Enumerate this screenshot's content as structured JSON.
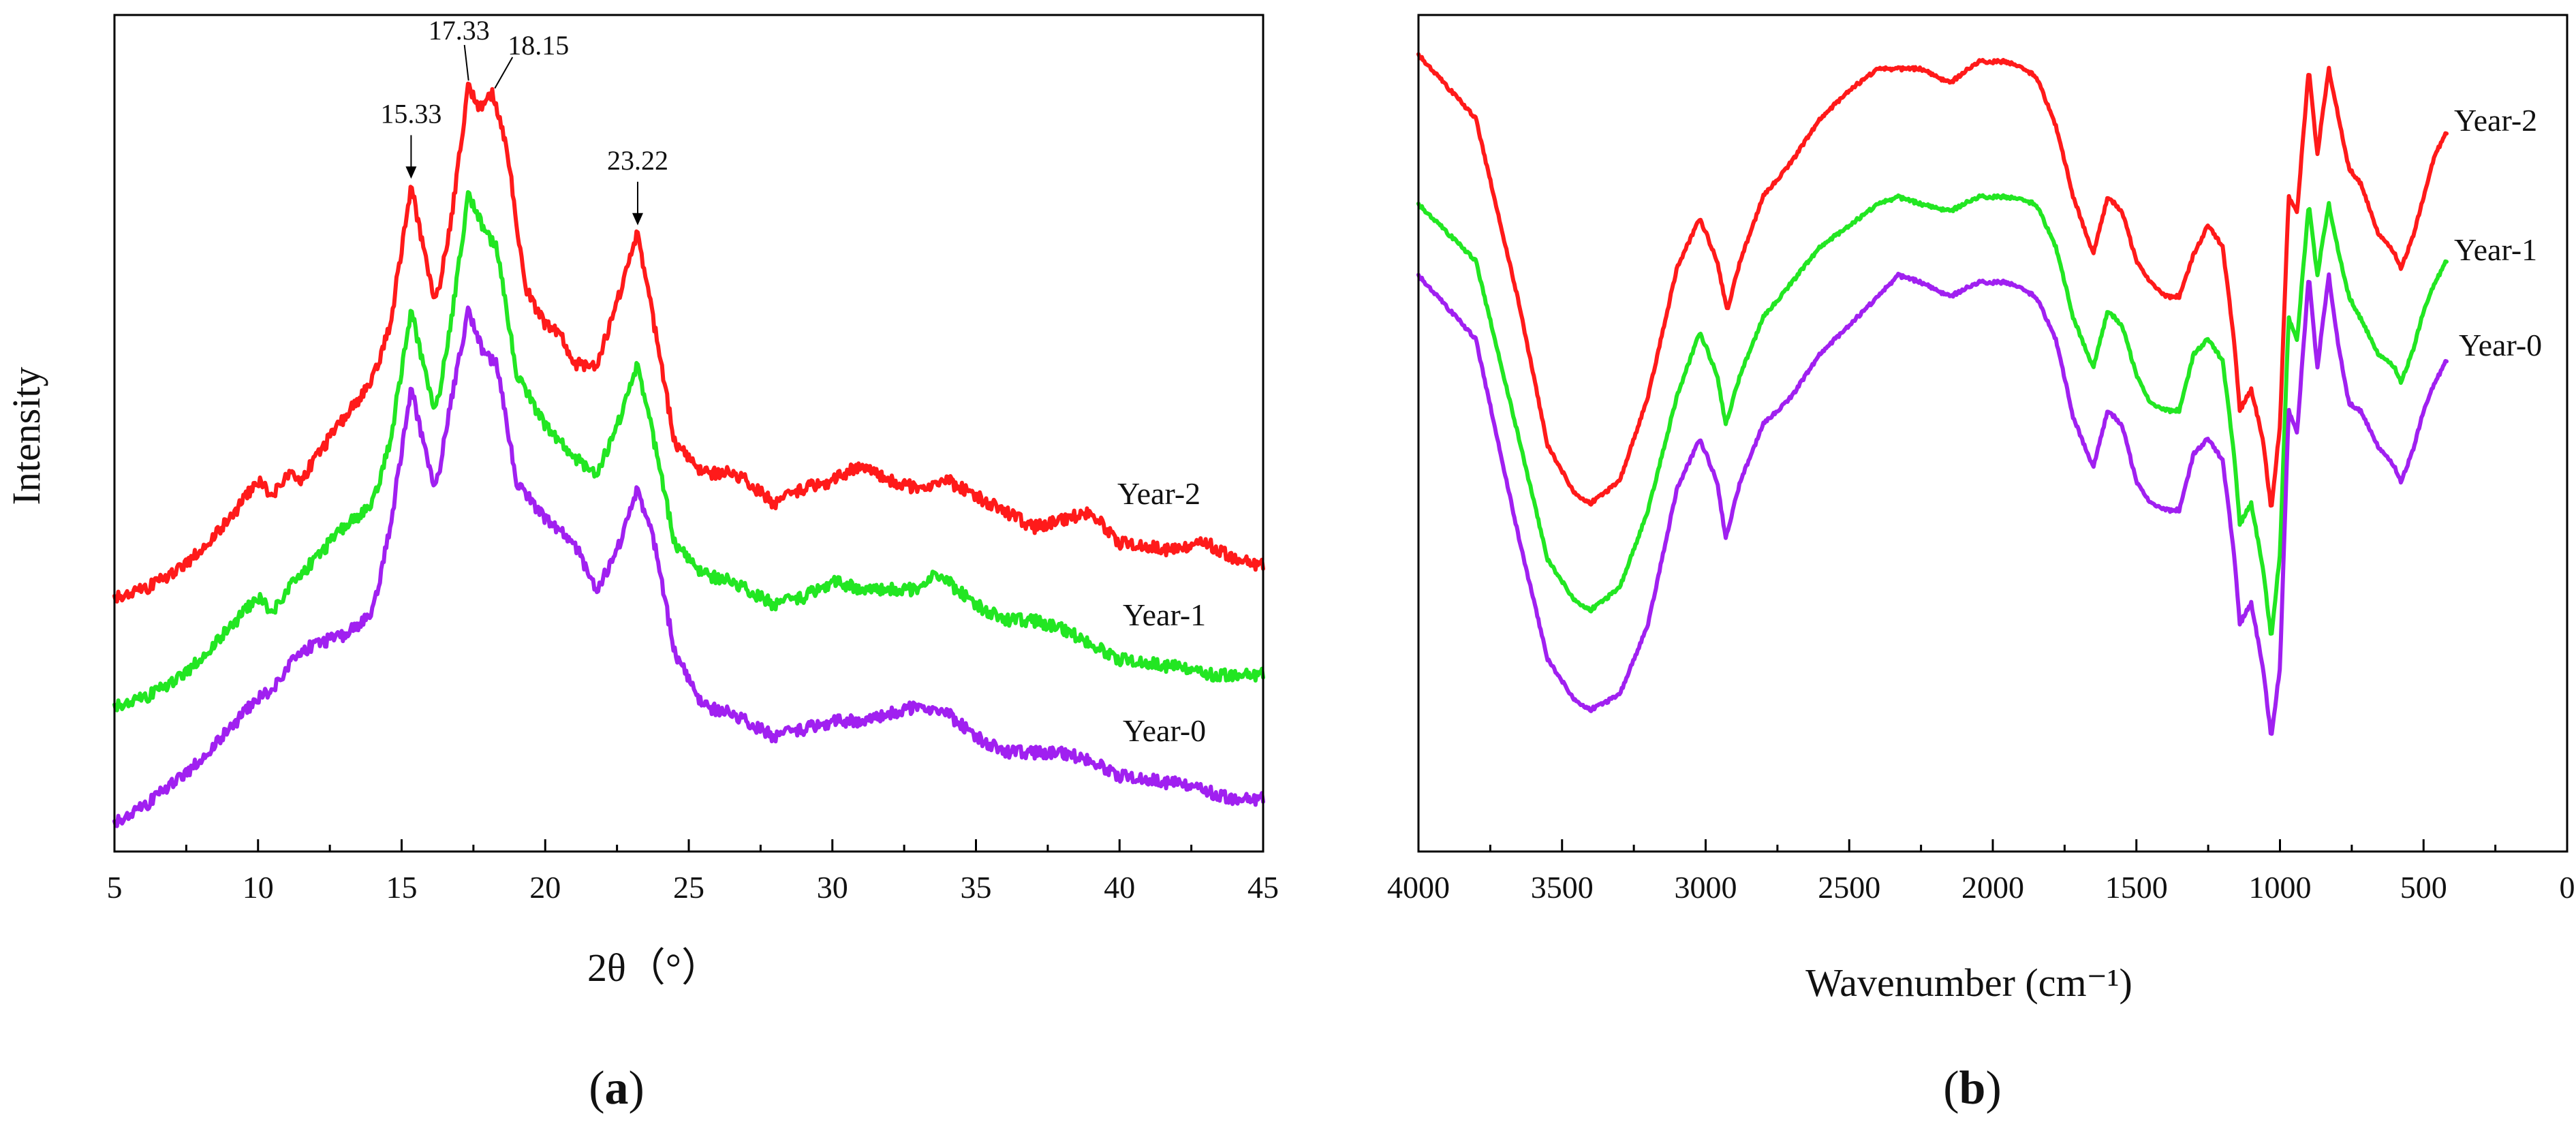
{
  "panel_a_label": "a",
  "panel_b_label": "b",
  "colors": {
    "year2": "#ff1a1a",
    "year1": "#22e622",
    "year0": "#a020f0",
    "axis": "#000000"
  },
  "chart_data": [
    {
      "type": "line",
      "title": "",
      "panel": "a",
      "xlabel": "2θ（°）",
      "ylabel": "Intensity",
      "xlim": [
        5,
        45
      ],
      "ylim": [
        0,
        100
      ],
      "x_ticks": [
        "5",
        "10",
        "15",
        "20",
        "25",
        "30",
        "35",
        "40",
        "45"
      ],
      "series": [
        {
          "name": "Year-2",
          "color": "#ff1a1a",
          "x": [
            5,
            6,
            7,
            8,
            9,
            10,
            10.5,
            11,
            11.5,
            12,
            13,
            14,
            14.6,
            15.33,
            15.8,
            16.2,
            16.7,
            17.33,
            17.7,
            18.15,
            18.7,
            19.3,
            20,
            20.5,
            21,
            21.8,
            22.5,
            23.22,
            23.8,
            24.5,
            25.5,
            26.5,
            27,
            28,
            29,
            30,
            31,
            32,
            33,
            34,
            35,
            36,
            37,
            38,
            39,
            40,
            42,
            43,
            44,
            45
          ],
          "y": [
            31,
            32,
            34,
            37,
            41,
            46,
            44,
            47,
            46,
            49,
            54,
            59,
            66,
            84,
            75,
            69,
            79,
            97,
            94,
            96,
            88,
            71,
            66,
            65,
            61,
            61,
            69,
            78,
            66,
            51,
            47,
            47,
            46,
            43,
            45,
            46,
            48,
            46,
            45,
            46,
            44,
            42,
            40,
            41,
            42,
            38,
            37,
            38,
            36,
            35
          ]
        },
        {
          "name": "Year-1",
          "color": "#22e622",
          "x": [
            5,
            6,
            7,
            8,
            9,
            10,
            10.5,
            11,
            12,
            13,
            14,
            14.6,
            15.33,
            15.8,
            16.2,
            16.7,
            17.33,
            17.8,
            18.3,
            19,
            20,
            21,
            21.8,
            22.5,
            23.22,
            23.8,
            24.5,
            25.5,
            26.5,
            28,
            29,
            30,
            31,
            32,
            33,
            33.5,
            34,
            35,
            36,
            37,
            38,
            39,
            40,
            42,
            43,
            44,
            45
          ],
          "y": [
            17,
            18,
            20,
            23,
            27,
            31,
            29,
            32,
            36,
            40,
            43,
            51,
            68,
            60,
            55,
            66,
            83,
            79,
            76,
            60,
            53,
            49,
            47,
            53,
            61,
            51,
            38,
            34,
            33,
            30,
            31,
            33,
            32,
            32,
            32,
            34,
            33,
            30,
            28,
            28,
            27,
            25,
            23,
            22,
            21,
            21,
            21
          ]
        },
        {
          "name": "Year-0",
          "color": "#a020f0",
          "x": [
            5,
            6,
            7,
            8,
            9,
            10,
            10.5,
            11,
            11.5,
            12,
            13,
            14,
            14.6,
            15.33,
            15.8,
            16.2,
            16.7,
            17.33,
            17.8,
            18.3,
            19,
            20,
            21,
            21.8,
            22.5,
            23.22,
            23.8,
            24.5,
            25.5,
            26.5,
            28,
            29,
            30,
            31,
            32,
            33,
            34,
            35,
            36,
            37,
            38,
            39,
            40,
            42,
            43,
            44,
            45
          ],
          "y": [
            2,
            4,
            7,
            10,
            14,
            18,
            19,
            22,
            24,
            25,
            26,
            29,
            40,
            58,
            50,
            45,
            56,
            68,
            63,
            61,
            46,
            41,
            38,
            32,
            37,
            45,
            38,
            24,
            17,
            16,
            13,
            14,
            15,
            15,
            16,
            17,
            16,
            13,
            11,
            11,
            11,
            10,
            8,
            7,
            6,
            5,
            5
          ]
        }
      ],
      "peak_annotations": [
        {
          "label": "15.33",
          "x": 15.33,
          "series": "Year-2"
        },
        {
          "label": "17.33",
          "x": 17.33,
          "series": "Year-2"
        },
        {
          "label": "18.15",
          "x": 18.15,
          "series": "Year-2"
        },
        {
          "label": "23.22",
          "x": 23.22,
          "series": "Year-2"
        }
      ],
      "series_labels": [
        "Year-2",
        "Year-1",
        "Year-0"
      ]
    },
    {
      "type": "line",
      "title": "",
      "panel": "b",
      "xlabel": "Wavenumber (cm⁻¹)",
      "ylabel": "",
      "xlim": [
        4000,
        0
      ],
      "ylim": [
        0,
        100
      ],
      "x_ticks": [
        "4000",
        "3500",
        "3000",
        "2500",
        "2000",
        "1500",
        "1000",
        "500",
        "0"
      ],
      "series": [
        {
          "name": "Year-2",
          "color": "#ff1a1a",
          "x": [
            4000,
            3800,
            3650,
            3550,
            3450,
            3400,
            3300,
            3200,
            3100,
            3020,
            2960,
            2925,
            2880,
            2800,
            2700,
            2600,
            2500,
            2400,
            2330,
            2250,
            2150,
            2050,
            1950,
            1850,
            1780,
            1720,
            1650,
            1600,
            1550,
            1500,
            1450,
            1400,
            1350,
            1300,
            1250,
            1200,
            1160,
            1140,
            1100,
            1060,
            1030,
            1000,
            970,
            940,
            900,
            870,
            830,
            800,
            760,
            720,
            660,
            600,
            580,
            540,
            500,
            460,
            420
          ],
          "y": [
            100,
            91,
            65,
            45,
            38,
            37,
            40,
            52,
            70,
            77,
            71,
            64,
            71,
            80,
            85,
            91,
            95,
            98,
            98,
            98,
            96,
            99,
            99,
            97,
            90,
            80,
            72,
            80,
            78,
            71,
            68,
            66,
            66,
            72,
            76,
            73,
            60,
            50,
            53,
            46,
            36,
            48,
            80,
            78,
            98,
            86,
            98,
            92,
            84,
            82,
            75,
            72,
            70,
            74,
            80,
            86,
            89
          ]
        },
        {
          "name": "Year-1",
          "color": "#22e622",
          "x": [
            4000,
            3800,
            3650,
            3550,
            3450,
            3400,
            3300,
            3200,
            3100,
            3020,
            2960,
            2930,
            2880,
            2800,
            2700,
            2600,
            2500,
            2400,
            2330,
            2250,
            2150,
            2050,
            1950,
            1850,
            1780,
            1720,
            1650,
            1600,
            1550,
            1500,
            1450,
            1400,
            1350,
            1300,
            1250,
            1200,
            1160,
            1140,
            1100,
            1060,
            1030,
            1000,
            970,
            940,
            900,
            870,
            830,
            800,
            760,
            720,
            660,
            600,
            580,
            540,
            500,
            460,
            420
          ],
          "y": [
            79,
            71,
            46,
            29,
            23,
            22,
            25,
            36,
            52,
            61,
            55,
            48,
            55,
            63,
            68,
            73,
            76,
            79,
            80,
            79,
            78,
            80,
            80,
            79,
            73,
            63,
            56,
            64,
            62,
            55,
            51,
            50,
            50,
            58,
            60,
            57,
            44,
            34,
            37,
            28,
            18,
            30,
            63,
            60,
            79,
            69,
            79,
            73,
            66,
            63,
            58,
            56,
            54,
            58,
            64,
            68,
            71
          ]
        },
        {
          "name": "Year-0",
          "color": "#a020f0",
          "x": [
            4000,
            3800,
            3650,
            3550,
            3450,
            3400,
            3300,
            3200,
            3100,
            3020,
            2960,
            2930,
            2880,
            2800,
            2700,
            2600,
            2500,
            2400,
            2330,
            2250,
            2150,
            2050,
            1950,
            1850,
            1780,
            1720,
            1650,
            1600,
            1550,
            1500,
            1450,
            1400,
            1350,
            1300,
            1250,
            1200,
            1160,
            1140,
            1100,
            1060,
            1030,
            1000,
            970,
            940,
            900,
            870,
            830,
            800,
            760,
            720,
            660,
            600,
            580,
            540,
            500,
            460,
            420
          ],
          "y": [
            69,
            60,
            32,
            15,
            9,
            8,
            10,
            20,
            39,
            46,
            40,
            32,
            40,
            48,
            52,
            58,
            62,
            66,
            69,
            68,
            66,
            68,
            68,
            66,
            60,
            49,
            42,
            50,
            48,
            40,
            37,
            36,
            36,
            44,
            46,
            43,
            30,
            20,
            23,
            14,
            4,
            14,
            50,
            47,
            69,
            56,
            69,
            60,
            51,
            50,
            45,
            42,
            40,
            44,
            50,
            54,
            57
          ]
        }
      ],
      "series_labels": [
        "Year-2",
        "Year-1",
        "Year-0"
      ]
    }
  ]
}
